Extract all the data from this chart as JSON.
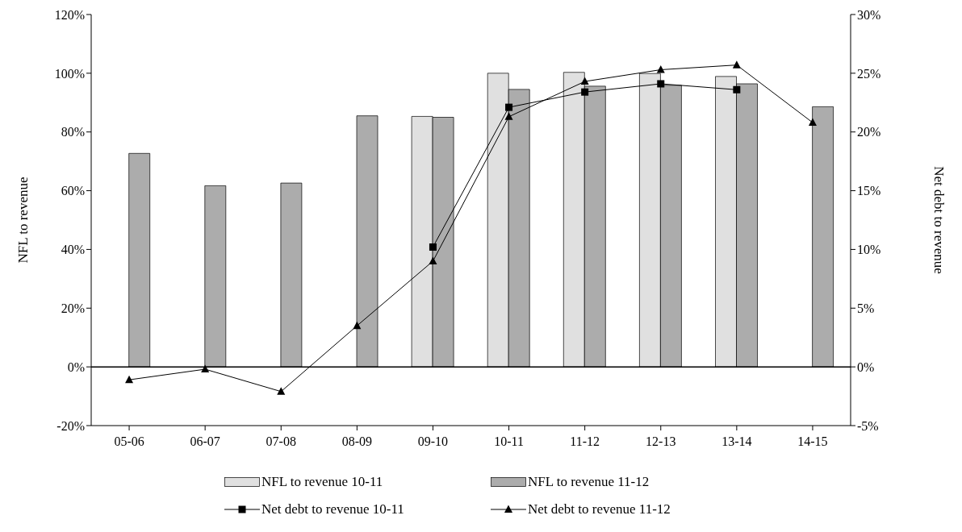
{
  "chart_data": {
    "type": "bar",
    "ylabel": "NFL to revenue",
    "y2label": "Net debt to revenue",
    "categories": [
      "05-06",
      "06-07",
      "07-08",
      "08-09",
      "09-10",
      "10-11",
      "11-12",
      "12-13",
      "13-14",
      "14-15"
    ],
    "series": [
      {
        "name": "NFL to revenue 10-11",
        "color": "#e0e0e0",
        "values": [
          null,
          null,
          null,
          null,
          85.3,
          100.0,
          100.3,
          99.9,
          98.9,
          null
        ]
      },
      {
        "name": "NFL to revenue 11-12",
        "color": "#acacac",
        "values": [
          72.7,
          61.7,
          62.6,
          85.5,
          85.0,
          94.5,
          95.6,
          95.9,
          96.4,
          88.6
        ]
      },
      {
        "name": "Net debt to revenue 10-11",
        "type": "line",
        "axis": "y2",
        "color": "#000000",
        "marker": "square",
        "values": [
          null,
          null,
          null,
          null,
          10.2,
          22.1,
          23.4,
          24.1,
          23.6,
          null
        ]
      },
      {
        "name": "Net debt to revenue 11-12",
        "type": "line",
        "axis": "y2",
        "color": "#000000",
        "marker": "triangle",
        "values": [
          -1.1,
          -0.2,
          -2.1,
          3.5,
          9.0,
          21.3,
          24.3,
          25.3,
          25.7,
          20.8
        ]
      }
    ],
    "ylim": [
      -20,
      120
    ],
    "yticks": [
      {
        "value": -20,
        "label": "-20%"
      },
      {
        "value": 0,
        "label": "0%"
      },
      {
        "value": 20,
        "label": "20%"
      },
      {
        "value": 40,
        "label": "40%"
      },
      {
        "value": 60,
        "label": "60%"
      },
      {
        "value": 80,
        "label": "80%"
      },
      {
        "value": 100,
        "label": "100%"
      },
      {
        "value": 120,
        "label": "120%"
      }
    ],
    "y2lim": [
      -5,
      30
    ],
    "y2ticks": [
      {
        "value": -5,
        "label": "-5%"
      },
      {
        "value": 0,
        "label": "0%"
      },
      {
        "value": 5,
        "label": "5%"
      },
      {
        "value": 10,
        "label": "10%"
      },
      {
        "value": 15,
        "label": "15%"
      },
      {
        "value": 20,
        "label": "20%"
      },
      {
        "value": 25,
        "label": "25%"
      },
      {
        "value": 30,
        "label": "30%"
      }
    ],
    "ref_lines": [
      {
        "axis": "y",
        "value": 0,
        "color": "#000000"
      }
    ],
    "legend": "bottom"
  }
}
